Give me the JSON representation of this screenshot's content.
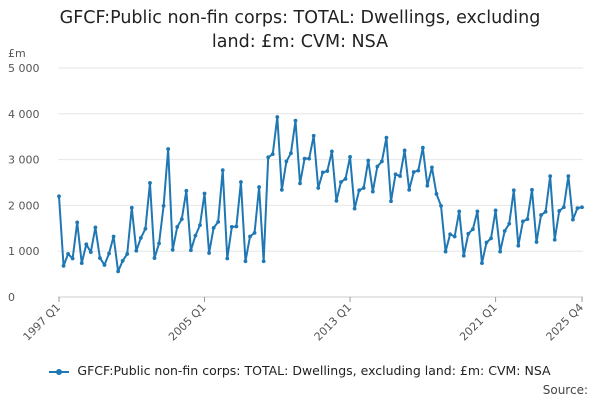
{
  "chart_data": {
    "type": "line",
    "title": "GFCF:Public non-fin corps: TOTAL: Dwellings, excluding land: £m: CVM: NSA",
    "title_lines": [
      "GFCF:Public non-fin corps: TOTAL: Dwellings, excluding",
      "land: £m: CVM: NSA"
    ],
    "ylabel": "£m",
    "ylim": [
      0,
      5000
    ],
    "y_ticks": [
      0,
      1000,
      2000,
      3000,
      4000,
      5000
    ],
    "y_tick_labels": [
      "0",
      "1 000",
      "2 000",
      "3 000",
      "4 000",
      "5 000"
    ],
    "x_tick_labels": [
      "1997 Q1",
      "2005 Q1",
      "2013 Q1",
      "2021 Q1",
      "2025 Q4"
    ],
    "x_tick_positions": [
      "1997 Q1",
      "2005 Q1",
      "2013 Q1",
      "2021 Q1",
      "2025 Q4"
    ],
    "grid": true,
    "legend_position": "bottom",
    "series": [
      {
        "name": "GFCF:Public non-fin corps: TOTAL: Dwellings, excluding land: £m: CVM: NSA",
        "color": "#1f77b4",
        "x": [
          "1997 Q1",
          "1997 Q2",
          "1997 Q3",
          "1997 Q4",
          "1998 Q1",
          "1998 Q2",
          "1998 Q3",
          "1998 Q4",
          "1999 Q1",
          "1999 Q2",
          "1999 Q3",
          "1999 Q4",
          "2000 Q1",
          "2000 Q2",
          "2000 Q3",
          "2000 Q4",
          "2001 Q1",
          "2001 Q2",
          "2001 Q3",
          "2001 Q4",
          "2002 Q1",
          "2002 Q2",
          "2002 Q3",
          "2002 Q4",
          "2003 Q1",
          "2003 Q2",
          "2003 Q3",
          "2003 Q4",
          "2004 Q1",
          "2004 Q2",
          "2004 Q3",
          "2004 Q4",
          "2005 Q1",
          "2005 Q2",
          "2005 Q3",
          "2005 Q4",
          "2006 Q1",
          "2006 Q2",
          "2006 Q3",
          "2006 Q4",
          "2007 Q1",
          "2007 Q2",
          "2007 Q3",
          "2007 Q4",
          "2008 Q1",
          "2008 Q2",
          "2008 Q3",
          "2008 Q4",
          "2009 Q1",
          "2009 Q2",
          "2009 Q3",
          "2009 Q4",
          "2010 Q1",
          "2010 Q2",
          "2010 Q3",
          "2010 Q4",
          "2011 Q1",
          "2011 Q2",
          "2011 Q3",
          "2011 Q4",
          "2012 Q1",
          "2012 Q2",
          "2012 Q3",
          "2012 Q4",
          "2013 Q1",
          "2013 Q2",
          "2013 Q3",
          "2013 Q4",
          "2014 Q1",
          "2014 Q2",
          "2014 Q3",
          "2014 Q4",
          "2015 Q1",
          "2015 Q2",
          "2015 Q3",
          "2015 Q4",
          "2016 Q1",
          "2016 Q2",
          "2016 Q3",
          "2016 Q4",
          "2017 Q1",
          "2017 Q2",
          "2017 Q3",
          "2017 Q4",
          "2018 Q1",
          "2018 Q2",
          "2018 Q3",
          "2018 Q4",
          "2019 Q1",
          "2019 Q2",
          "2019 Q3",
          "2019 Q4",
          "2020 Q1",
          "2020 Q2",
          "2020 Q3",
          "2020 Q4",
          "2021 Q1",
          "2021 Q2",
          "2021 Q3",
          "2021 Q4",
          "2022 Q1",
          "2022 Q2",
          "2022 Q3",
          "2022 Q4",
          "2023 Q1",
          "2023 Q2",
          "2023 Q3",
          "2023 Q4",
          "2024 Q1",
          "2024 Q2",
          "2024 Q3",
          "2024 Q4",
          "2025 Q1",
          "2025 Q2",
          "2025 Q3",
          "2025 Q4"
        ],
        "values": [
          2200,
          680,
          940,
          840,
          1630,
          740,
          1150,
          980,
          1520,
          850,
          700,
          950,
          1320,
          560,
          790,
          940,
          1950,
          1010,
          1290,
          1490,
          2490,
          850,
          1170,
          1990,
          3230,
          1030,
          1530,
          1700,
          2320,
          1020,
          1340,
          1570,
          2260,
          960,
          1510,
          1640,
          2770,
          840,
          1530,
          1540,
          2510,
          780,
          1320,
          1400,
          2400,
          780,
          3050,
          3120,
          3930,
          2340,
          2960,
          3140,
          3850,
          2480,
          3020,
          3020,
          3520,
          2380,
          2720,
          2750,
          3180,
          2100,
          2510,
          2580,
          3060,
          1930,
          2330,
          2380,
          2980,
          2300,
          2850,
          2960,
          3480,
          2090,
          2680,
          2640,
          3200,
          2340,
          2730,
          2760,
          3260,
          2430,
          2830,
          2250,
          1990,
          990,
          1370,
          1320,
          1870,
          900,
          1380,
          1480,
          1870,
          740,
          1190,
          1280,
          1890,
          990,
          1440,
          1600,
          2330,
          1120,
          1650,
          1700,
          2340,
          1200,
          1790,
          1860,
          2640,
          1250,
          1880,
          1960,
          2640,
          1690,
          1940,
          1960
        ]
      }
    ]
  },
  "legend": {
    "label": "GFCF:Public non-fin corps: TOTAL: Dwellings, excluding land: £m: CVM: NSA"
  },
  "footer": {
    "source_label": "Source:"
  }
}
